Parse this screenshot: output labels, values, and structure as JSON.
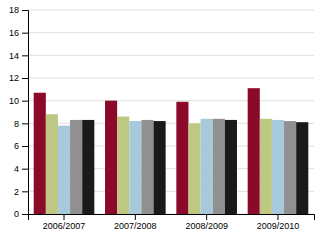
{
  "chart_data": {
    "type": "bar",
    "categories": [
      "2006/2007",
      "2007/2008",
      "2008/2009",
      "2009/2010"
    ],
    "series": [
      {
        "color": "#8B0A2A",
        "values": [
          10.7,
          10.0,
          9.9,
          11.1
        ]
      },
      {
        "color": "#BEC882",
        "values": [
          8.8,
          8.6,
          8.0,
          8.4
        ]
      },
      {
        "color": "#A8C8DC",
        "values": [
          7.8,
          8.2,
          8.4,
          8.3
        ]
      },
      {
        "color": "#909090",
        "values": [
          8.3,
          8.3,
          8.4,
          8.2
        ]
      },
      {
        "color": "#1A1A1A",
        "values": [
          8.3,
          8.2,
          8.3,
          8.1
        ]
      }
    ],
    "ylim": [
      0,
      18
    ],
    "yticks": [
      0,
      2,
      4,
      6,
      8,
      10,
      12,
      14,
      16,
      18
    ],
    "grid": true
  }
}
